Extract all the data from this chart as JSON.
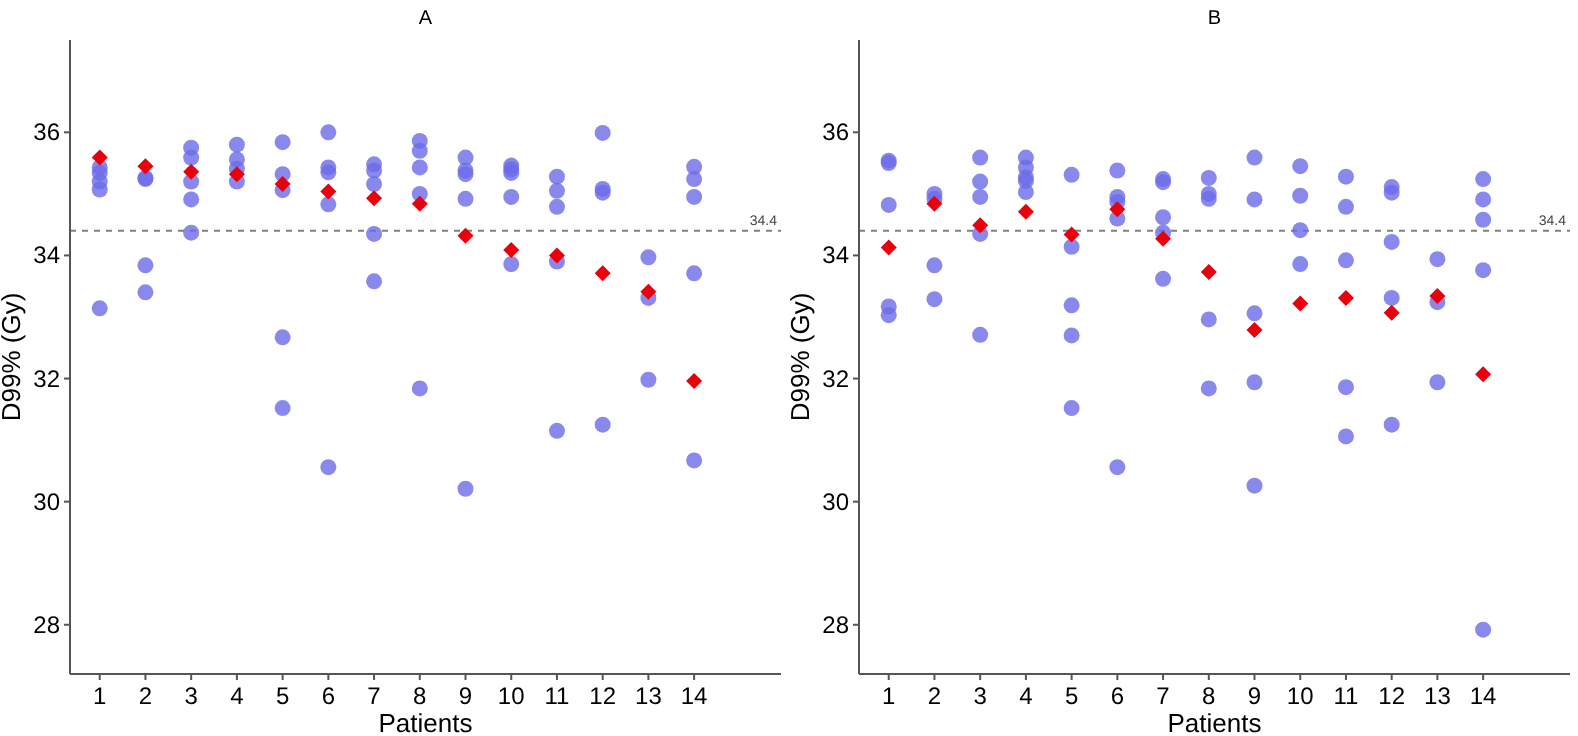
{
  "chart_data": [
    {
      "type": "scatter",
      "title": "A",
      "xlabel": "Patients",
      "ylabel": "D99% (Gy)",
      "xlim": [
        0.35,
        15.9
      ],
      "xticks": [
        1,
        2,
        3,
        4,
        5,
        6,
        7,
        8,
        9,
        10,
        11,
        12,
        13,
        14
      ],
      "ylim": [
        27.2,
        37.5
      ],
      "yticks": [
        28,
        30,
        32,
        34,
        36
      ],
      "grid": false,
      "ref_lines": [
        {
          "axis": "y",
          "value": 34.4,
          "label": "34.4",
          "color": "#808080",
          "line_style": "dashed"
        }
      ],
      "series": [
        {
          "color": "#6b6be8",
          "marker": "circle",
          "x": [
            1,
            1,
            1,
            1,
            1,
            2,
            2,
            2,
            2,
            3,
            3,
            3,
            3,
            3,
            4,
            4,
            4,
            4,
            5,
            5,
            5,
            5,
            5,
            6,
            6,
            6,
            6,
            6,
            7,
            7,
            7,
            7,
            7,
            8,
            8,
            8,
            8,
            8,
            9,
            9,
            9,
            9,
            9,
            10,
            10,
            10,
            10,
            10,
            11,
            11,
            11,
            11,
            11,
            12,
            12,
            12,
            12,
            13,
            13,
            13,
            14,
            14,
            14,
            14,
            14
          ],
          "values": [
            35.43,
            35.34,
            35.2,
            35.07,
            33.14,
            35.26,
            35.24,
            33.84,
            33.4,
            35.75,
            35.59,
            35.2,
            34.91,
            34.37,
            35.8,
            35.56,
            35.41,
            35.2,
            35.84,
            35.32,
            35.06,
            32.67,
            31.52,
            36.0,
            35.43,
            35.35,
            34.83,
            30.56,
            35.48,
            35.38,
            35.16,
            34.35,
            33.58,
            35.86,
            35.7,
            35.43,
            35.0,
            31.84,
            35.59,
            35.38,
            35.32,
            34.92,
            30.21,
            35.46,
            35.4,
            35.34,
            34.95,
            33.86,
            35.28,
            35.05,
            34.79,
            33.9,
            31.15,
            35.99,
            35.08,
            35.02,
            31.25,
            33.97,
            33.31,
            31.98,
            35.44,
            35.24,
            34.95,
            33.71,
            30.67
          ]
        },
        {
          "color": "#e8000b",
          "marker": "diamond",
          "x": [
            1,
            2,
            3,
            4,
            5,
            6,
            7,
            8,
            9,
            10,
            11,
            12,
            13,
            14
          ],
          "values": [
            35.59,
            35.45,
            35.36,
            35.32,
            35.16,
            35.04,
            34.93,
            34.84,
            34.32,
            34.09,
            34.0,
            33.71,
            33.41,
            31.96
          ]
        }
      ]
    },
    {
      "type": "scatter",
      "title": "B",
      "xlabel": "Patients",
      "ylabel": "D99% (Gy)",
      "xlim": [
        0.35,
        15.9
      ],
      "xticks": [
        1,
        2,
        3,
        4,
        5,
        6,
        7,
        8,
        9,
        10,
        11,
        12,
        13,
        14
      ],
      "ylim": [
        27.2,
        37.5
      ],
      "yticks": [
        28,
        30,
        32,
        34,
        36
      ],
      "grid": false,
      "ref_lines": [
        {
          "axis": "y",
          "value": 34.4,
          "label": "34.4",
          "color": "#808080",
          "line_style": "dashed"
        }
      ],
      "series": [
        {
          "color": "#6b6be8",
          "marker": "circle",
          "x": [
            1,
            1,
            1,
            1,
            1,
            2,
            2,
            2,
            2,
            3,
            3,
            3,
            3,
            3,
            4,
            4,
            4,
            4,
            4,
            5,
            5,
            5,
            5,
            5,
            6,
            6,
            6,
            6,
            6,
            7,
            7,
            7,
            7,
            7,
            8,
            8,
            8,
            8,
            8,
            9,
            9,
            9,
            9,
            9,
            10,
            10,
            10,
            10,
            11,
            11,
            11,
            11,
            11,
            12,
            12,
            12,
            12,
            12,
            13,
            13,
            13,
            14,
            14,
            14,
            14,
            14
          ],
          "values": [
            35.54,
            35.5,
            34.82,
            33.17,
            33.03,
            35.0,
            34.92,
            33.84,
            33.29,
            35.59,
            35.2,
            34.95,
            34.35,
            32.71,
            35.59,
            35.43,
            35.27,
            35.21,
            35.03,
            35.31,
            34.14,
            33.19,
            32.7,
            31.52,
            35.38,
            34.95,
            34.87,
            34.6,
            30.56,
            35.24,
            35.19,
            34.62,
            34.37,
            33.62,
            35.26,
            35.0,
            34.92,
            32.96,
            31.84,
            35.59,
            34.91,
            33.06,
            31.94,
            30.26,
            35.45,
            34.97,
            34.41,
            33.86,
            35.28,
            34.79,
            33.92,
            31.86,
            31.06,
            35.11,
            35.02,
            34.22,
            33.31,
            31.25,
            33.94,
            33.24,
            31.94,
            35.24,
            34.91,
            34.58,
            33.76,
            27.92
          ]
        },
        {
          "color": "#e8000b",
          "marker": "diamond",
          "x": [
            1,
            2,
            3,
            4,
            5,
            6,
            7,
            8,
            9,
            10,
            11,
            12,
            13,
            14
          ],
          "values": [
            34.13,
            34.84,
            34.49,
            34.71,
            34.34,
            34.75,
            34.27,
            33.73,
            32.79,
            33.22,
            33.31,
            33.07,
            33.34,
            32.07
          ]
        }
      ]
    }
  ]
}
